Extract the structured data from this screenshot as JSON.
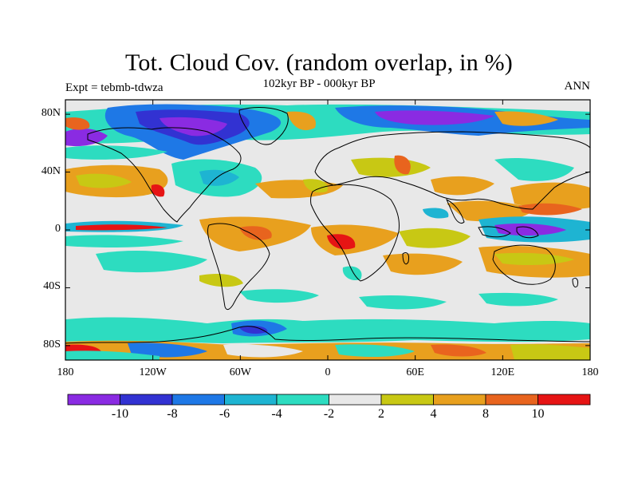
{
  "title": "Tot. Cloud Cov. (random overlap, in %)",
  "subtitle_left": "Expt = tebmb-tdwza",
  "subtitle_center": "102kyr BP - 000kyr BP",
  "subtitle_right": "ANN",
  "lat_ticks": [
    {
      "label": "80N",
      "value": 80
    },
    {
      "label": "40N",
      "value": 40
    },
    {
      "label": "0",
      "value": 0
    },
    {
      "label": "40S",
      "value": -40
    },
    {
      "label": "80S",
      "value": -80
    }
  ],
  "lon_ticks": [
    {
      "label": "180",
      "value": -180
    },
    {
      "label": "120W",
      "value": -120
    },
    {
      "label": "60W",
      "value": -60
    },
    {
      "label": "0",
      "value": 0
    },
    {
      "label": "60E",
      "value": 60
    },
    {
      "label": "120E",
      "value": 120
    },
    {
      "label": "180",
      "value": 180
    }
  ],
  "colorbar": {
    "colors": [
      "#8a2be2",
      "#3232d2",
      "#1e78e6",
      "#1eb4d2",
      "#2ddcc0",
      "#e8e8e8",
      "#c8c814",
      "#e8a01e",
      "#e8641e",
      "#e61414"
    ],
    "labels": [
      "-10",
      "-8",
      "-6",
      "-4",
      "-2",
      "2",
      "4",
      "8",
      "10"
    ]
  }
}
